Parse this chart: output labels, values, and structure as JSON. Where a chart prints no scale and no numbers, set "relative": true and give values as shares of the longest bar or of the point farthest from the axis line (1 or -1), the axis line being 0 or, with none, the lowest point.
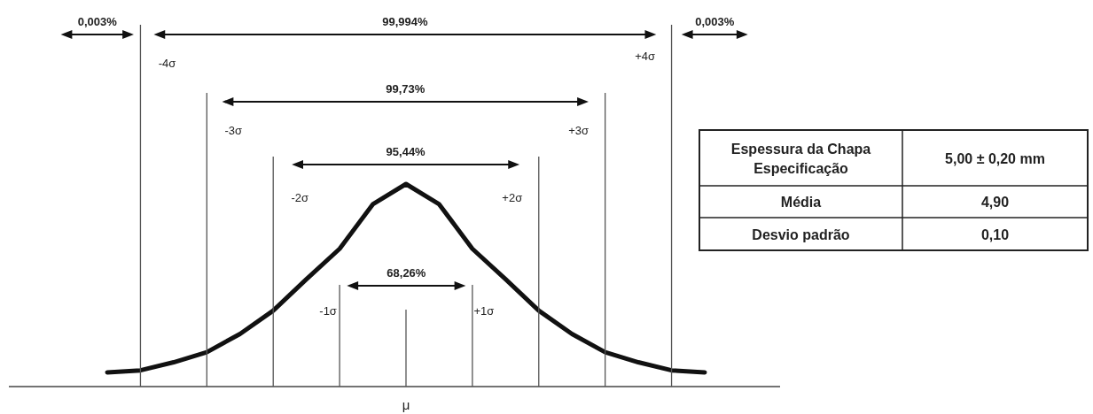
{
  "chart_data": [
    {
      "type": "line",
      "relative": true,
      "categories": [
        null,
        null,
        null,
        null,
        null,
        null,
        null,
        null,
        null,
        null,
        null,
        null,
        null,
        null,
        null,
        null,
        null,
        null,
        null
      ],
      "series": [
        {
          "color": "#111111",
          "values": [
            0.07,
            0.08,
            0.12,
            0.17,
            0.26,
            0.375,
            0.53,
            0.68,
            0.9,
            1,
            0.9,
            0.68,
            0.53,
            0.375,
            0.26,
            0.17,
            0.12,
            0.08,
            0.07
          ]
        }
      ],
      "marker": "none",
      "line_style": "solid",
      "grid": "x",
      "annotations": [
        "0,003%",
        "99,994%",
        "0,003%",
        "99,73%",
        "95,44%",
        "68,26%",
        "-4σ",
        "-3σ",
        "-2σ",
        "-1σ",
        "+1σ",
        "+2σ",
        "+3σ",
        "+4σ",
        "μ"
      ]
    },
    {
      "type": "other",
      "annotations": [
        "Espessura da Chapa\nEspecificação",
        "5,00 ± 0,20 mm",
        "Média",
        "4,90",
        "Desvio padrão",
        "0,10"
      ]
    }
  ]
}
